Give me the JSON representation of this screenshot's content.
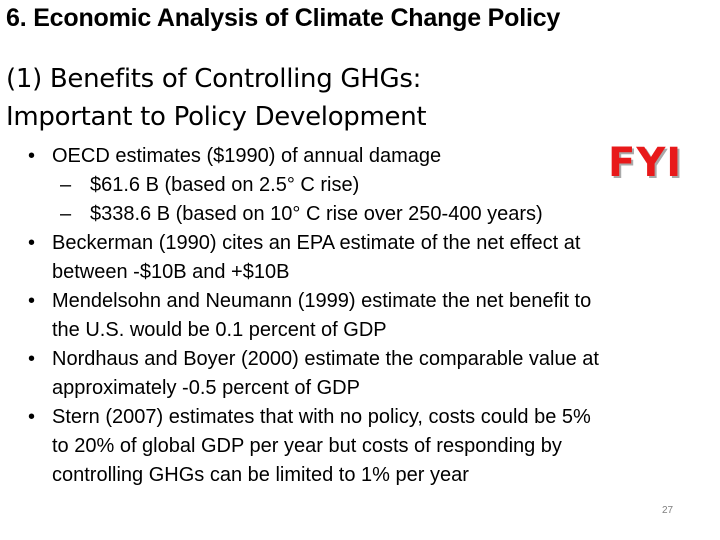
{
  "slide": {
    "title": "6. Economic Analysis of Climate Change Policy",
    "subtitle_lines": [
      "(1) Benefits of Controlling GHGs:",
      "Important to Policy Development"
    ],
    "fyi": "FYI",
    "page_number": "27",
    "bullet_symbol": "•",
    "dash_symbol": "–"
  },
  "bullets": [
    {
      "lines": [
        "OECD estimates ($1990) of annual damage"
      ],
      "sub": [
        "$61.6 B (based on 2.5° C rise)",
        "$338.6 B (based on 10° C rise over 250-400 years)"
      ]
    },
    {
      "lines": [
        "Beckerman (1990) cites an EPA estimate of the net effect at",
        "between -$10B and +$10B"
      ]
    },
    {
      "lines": [
        "Mendelsohn and Neumann (1999) estimate the net benefit to",
        "the U.S. would be 0.1 percent of GDP"
      ]
    },
    {
      "lines": [
        "Nordhaus and Boyer (2000) estimate the comparable value at",
        "approximately -0.5 percent of GDP"
      ]
    },
    {
      "lines": [
        "Stern (2007) estimates that with no policy, costs could be 5%",
        "to 20% of global GDP per year but costs of responding by",
        "controlling GHGs can be limited to 1% per year"
      ]
    }
  ]
}
